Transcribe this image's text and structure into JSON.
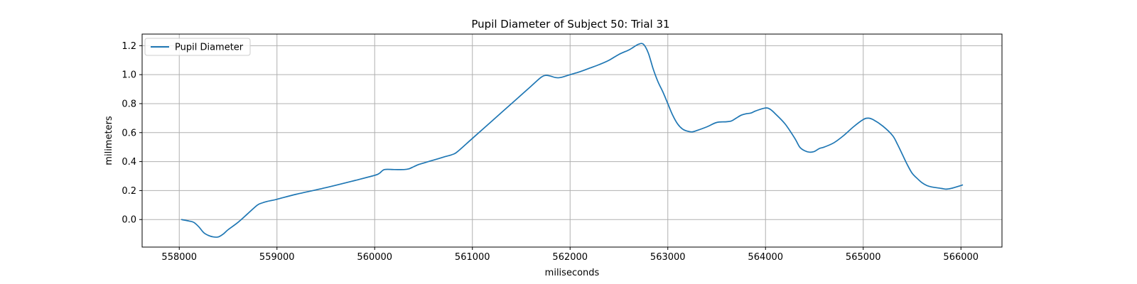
{
  "chart_data": {
    "type": "line",
    "title": "Pupil Diameter of Subject 50: Trial 31",
    "xlabel": "miliseconds",
    "ylabel": "milimeters",
    "xlim": [
      557620,
      566420
    ],
    "ylim": [
      -0.19,
      1.28
    ],
    "xticks": [
      558000,
      559000,
      560000,
      561000,
      562000,
      563000,
      564000,
      565000,
      566000
    ],
    "yticks": [
      0.0,
      0.2,
      0.4,
      0.6,
      0.8,
      1.0,
      1.2
    ],
    "grid": true,
    "legend_position": "top-left",
    "series": [
      {
        "name": "Pupil Diameter",
        "color": "#1f77b4",
        "x": [
          558020,
          558100,
          558150,
          558200,
          558250,
          558300,
          558350,
          558400,
          558450,
          558500,
          558600,
          558700,
          558800,
          558850,
          558900,
          559000,
          559200,
          559500,
          559800,
          560000,
          560050,
          560100,
          560200,
          560300,
          560350,
          560400,
          560450,
          560500,
          560600,
          560700,
          560800,
          560850,
          561000,
          561200,
          561400,
          561600,
          561700,
          561750,
          561800,
          561850,
          561900,
          562000,
          562100,
          562200,
          562300,
          562400,
          562500,
          562600,
          562650,
          562700,
          562750,
          562800,
          562850,
          562900,
          562950,
          563000,
          563050,
          563100,
          563150,
          563200,
          563250,
          563300,
          563400,
          563500,
          563600,
          563650,
          563700,
          563750,
          563800,
          563850,
          563900,
          564000,
          564050,
          564100,
          564200,
          564300,
          564350,
          564400,
          564450,
          564500,
          564550,
          564600,
          564700,
          564800,
          564900,
          565000,
          565050,
          565100,
          565200,
          565300,
          565350,
          565400,
          565450,
          565500,
          565550,
          565600,
          565650,
          565700,
          565800,
          565850,
          565900,
          566000,
          566020
        ],
        "y": [
          0.0,
          -0.01,
          -0.02,
          -0.05,
          -0.09,
          -0.11,
          -0.12,
          -0.12,
          -0.1,
          -0.07,
          -0.02,
          0.04,
          0.1,
          0.115,
          0.125,
          0.14,
          0.175,
          0.22,
          0.27,
          0.305,
          0.32,
          0.345,
          0.345,
          0.345,
          0.35,
          0.365,
          0.38,
          0.39,
          0.41,
          0.43,
          0.45,
          0.47,
          0.56,
          0.68,
          0.8,
          0.92,
          0.98,
          0.995,
          0.99,
          0.98,
          0.98,
          1.0,
          1.02,
          1.045,
          1.07,
          1.1,
          1.14,
          1.17,
          1.19,
          1.21,
          1.21,
          1.15,
          1.04,
          0.95,
          0.88,
          0.8,
          0.72,
          0.66,
          0.625,
          0.61,
          0.605,
          0.615,
          0.64,
          0.67,
          0.675,
          0.68,
          0.7,
          0.72,
          0.73,
          0.735,
          0.75,
          0.77,
          0.76,
          0.73,
          0.66,
          0.56,
          0.5,
          0.475,
          0.465,
          0.47,
          0.49,
          0.5,
          0.53,
          0.58,
          0.64,
          0.69,
          0.7,
          0.69,
          0.645,
          0.58,
          0.52,
          0.45,
          0.38,
          0.32,
          0.285,
          0.255,
          0.235,
          0.225,
          0.215,
          0.21,
          0.215,
          0.235,
          0.24
        ]
      }
    ]
  }
}
